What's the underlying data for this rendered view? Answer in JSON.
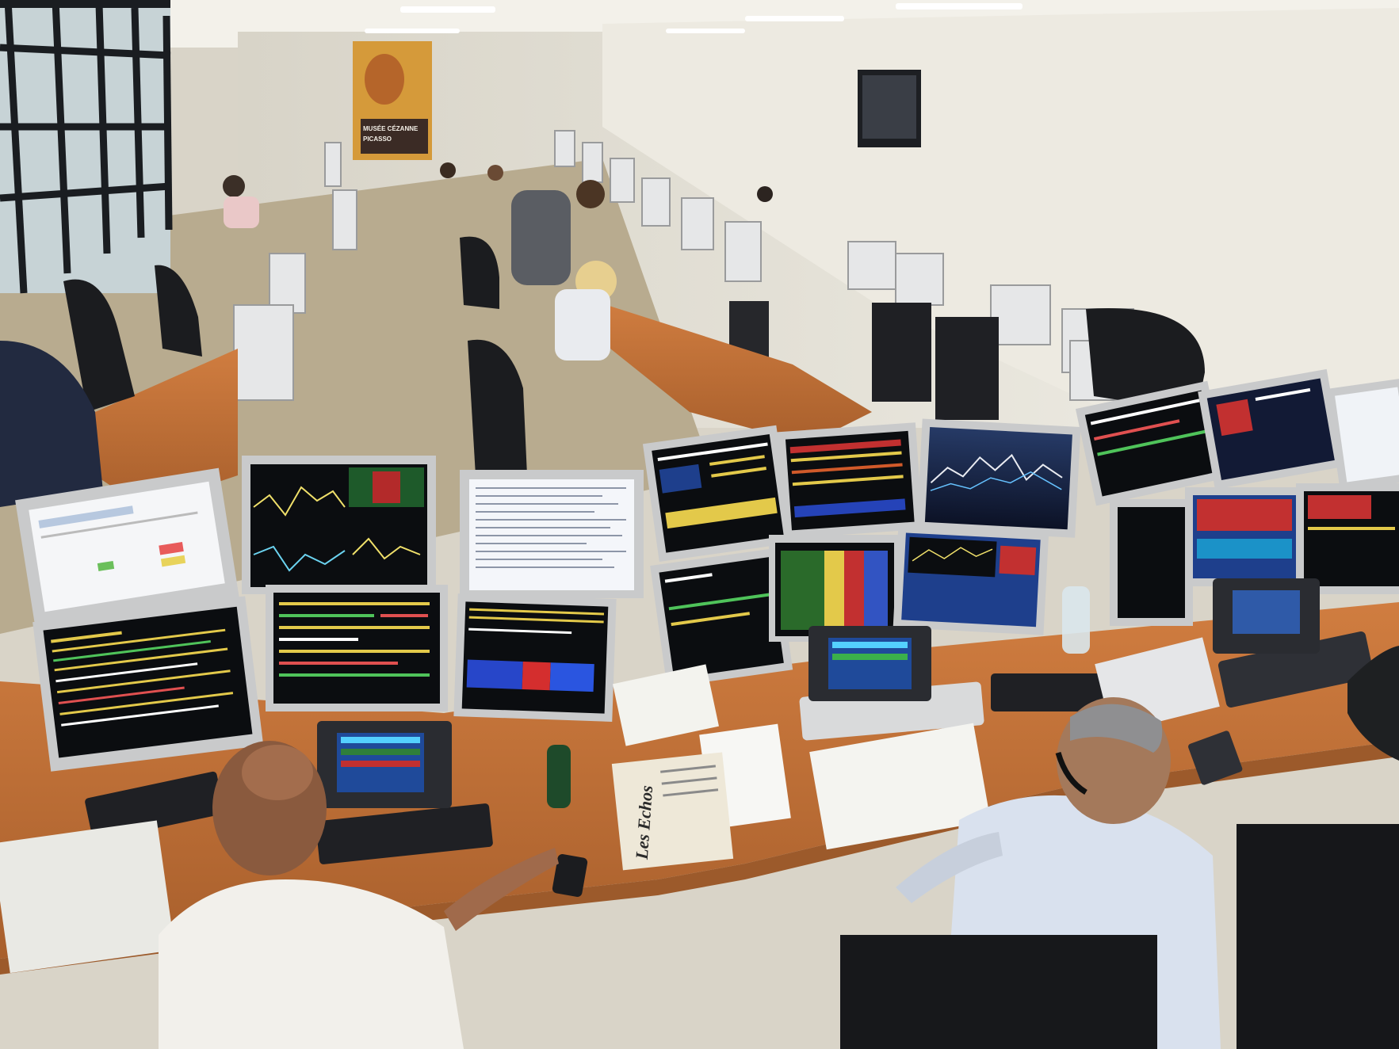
{
  "scene": {
    "description_type": "photo",
    "newspaper_masthead": "Les Echos",
    "poster_caption": "MUSÉE CÉZANNE PICASSO"
  },
  "colors": {
    "wall": "#e9e6dc",
    "ceiling": "#f3f1ea",
    "carpet": "#b8ab8f",
    "desk": "#c7743a",
    "desk_edge": "#9c5a2b",
    "monitor_bezel": "#c9cacb",
    "screen_dark": "#0b0d10",
    "screen_blue": "#1e3f8c",
    "chair": "#1b1c1f",
    "window_frame": "#1a1d21",
    "window_glass": "#c7d3d6"
  }
}
